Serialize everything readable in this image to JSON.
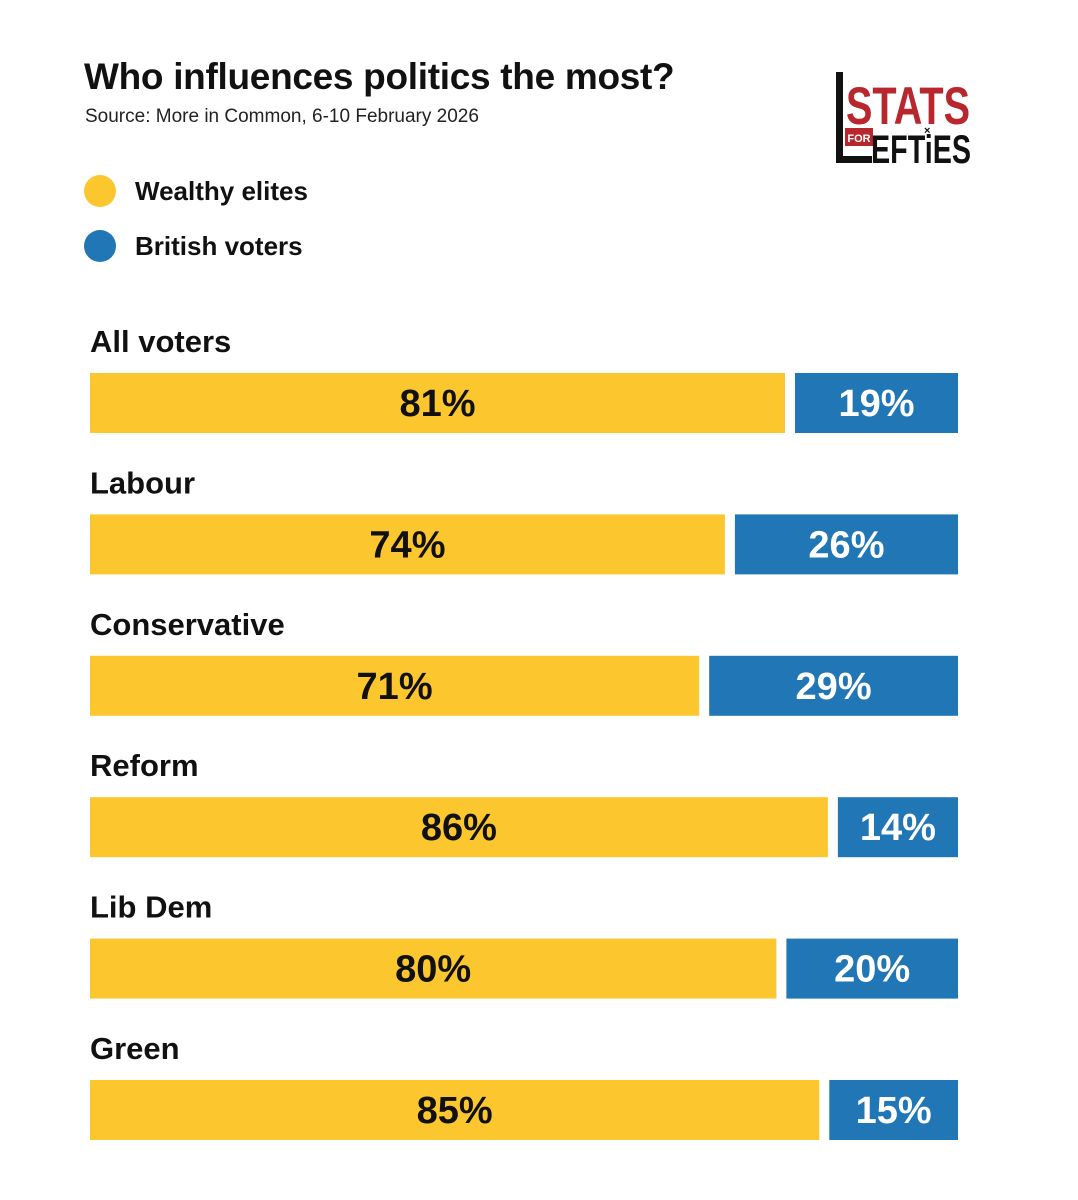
{
  "title": "Who influences politics the most?",
  "subtitle": "Source: More in Common, 6-10 February 2026",
  "logo": {
    "top_text": "STATS",
    "small_text": "FOR",
    "bottom_text": "EFTiES"
  },
  "colors": {
    "wealthy": "#FCC72E",
    "voters": "#2176B5"
  },
  "chart_data": {
    "type": "bar",
    "orientation": "horizontal-stacked-100",
    "title": "Who influences politics the most?",
    "legend": [
      {
        "name": "Wealthy elites",
        "color": "#FCC72E"
      },
      {
        "name": "British voters",
        "color": "#2176B5"
      }
    ],
    "categories": [
      "All voters",
      "Labour",
      "Conservative",
      "Reform",
      "Lib Dem",
      "Green"
    ],
    "series": [
      {
        "name": "Wealthy elites",
        "values": [
          81,
          74,
          71,
          86,
          80,
          85
        ]
      },
      {
        "name": "British voters",
        "values": [
          19,
          26,
          29,
          14,
          20,
          15
        ]
      }
    ],
    "labels": [
      [
        "81%",
        "19%"
      ],
      [
        "74%",
        "26%"
      ],
      [
        "71%",
        "29%"
      ],
      [
        "86%",
        "14%"
      ],
      [
        "80%",
        "20%"
      ],
      [
        "85%",
        "15%"
      ]
    ],
    "xlim": [
      0,
      100
    ]
  }
}
